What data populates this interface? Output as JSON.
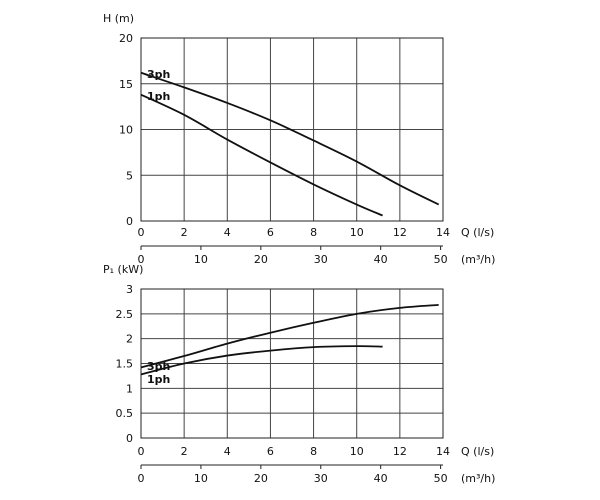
{
  "chart_data": [
    {
      "type": "line",
      "title": "",
      "ylabel": "H  (m)",
      "xlabel": "Q (l/s)",
      "xlabel2": "(m³/h)",
      "xlim": [
        0,
        14
      ],
      "ylim": [
        0,
        20
      ],
      "x_ticks": [
        "0",
        "2",
        "4",
        "6",
        "8",
        "10",
        "12",
        "14"
      ],
      "y_ticks": [
        "0",
        "5",
        "10",
        "15",
        "20"
      ],
      "x2_ticks": [
        "0",
        "10",
        "20",
        "30",
        "40",
        "50"
      ],
      "grid": true,
      "series": [
        {
          "name": "3ph",
          "x": [
            0,
            2,
            4,
            6,
            8,
            10,
            12,
            13.8
          ],
          "y": [
            16.2,
            14.6,
            12.9,
            11.0,
            8.8,
            6.5,
            3.9,
            1.8
          ]
        },
        {
          "name": "1ph",
          "x": [
            0,
            2,
            4,
            6,
            8,
            10,
            11.2
          ],
          "y": [
            13.8,
            11.6,
            8.9,
            6.4,
            4.0,
            1.8,
            0.6
          ]
        }
      ]
    },
    {
      "type": "line",
      "title": "",
      "ylabel": "P₁ (kW)",
      "xlabel": "Q (l/s)",
      "xlabel2": "(m³/h)",
      "xlim": [
        0,
        14
      ],
      "ylim": [
        0,
        3
      ],
      "x_ticks": [
        "0",
        "2",
        "4",
        "6",
        "8",
        "10",
        "12",
        "14"
      ],
      "y_ticks": [
        "0",
        "0.5",
        "1",
        "1.5",
        "2",
        "2.5",
        "3"
      ],
      "x2_ticks": [
        "0",
        "10",
        "20",
        "30",
        "40",
        "50"
      ],
      "grid": true,
      "series": [
        {
          "name": "3ph",
          "x": [
            0,
            2,
            4,
            6,
            8,
            10,
            12,
            13.8
          ],
          "y": [
            1.42,
            1.65,
            1.9,
            2.12,
            2.32,
            2.5,
            2.62,
            2.68
          ]
        },
        {
          "name": "1ph",
          "x": [
            0,
            2,
            4,
            6,
            8,
            10,
            11.2
          ],
          "y": [
            1.28,
            1.5,
            1.66,
            1.76,
            1.83,
            1.85,
            1.84
          ]
        }
      ]
    }
  ],
  "colors": {
    "line": "#111111",
    "grid": "#444444"
  },
  "curve_labels": {
    "three_phase": "3ph",
    "single_phase": "1ph"
  }
}
